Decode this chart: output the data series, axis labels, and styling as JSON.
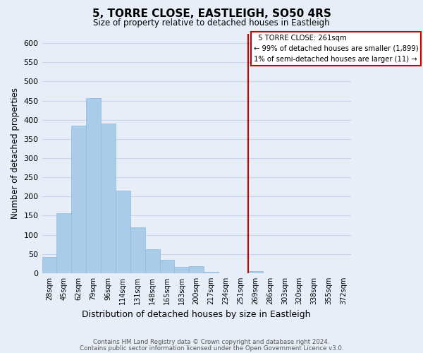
{
  "title": "5, TORRE CLOSE, EASTLEIGH, SO50 4RS",
  "subtitle": "Size of property relative to detached houses in Eastleigh",
  "xlabel": "Distribution of detached houses by size in Eastleigh",
  "ylabel": "Number of detached properties",
  "bar_labels": [
    "28sqm",
    "45sqm",
    "62sqm",
    "79sqm",
    "96sqm",
    "114sqm",
    "131sqm",
    "148sqm",
    "165sqm",
    "183sqm",
    "200sqm",
    "217sqm",
    "234sqm",
    "251sqm",
    "269sqm",
    "286sqm",
    "303sqm",
    "320sqm",
    "338sqm",
    "355sqm",
    "372sqm"
  ],
  "bar_values": [
    42,
    157,
    385,
    457,
    390,
    216,
    120,
    62,
    35,
    17,
    19,
    4,
    0,
    0,
    6,
    0,
    0,
    0,
    0,
    0,
    0
  ],
  "bar_color": "#aacce8",
  "bar_edge_color": "#88bbdd",
  "ylim": [
    0,
    625
  ],
  "yticks": [
    0,
    50,
    100,
    150,
    200,
    250,
    300,
    350,
    400,
    450,
    500,
    550,
    600
  ],
  "vline_color": "#cc0000",
  "annotation_title": "5 TORRE CLOSE: 261sqm",
  "annotation_line1": "← 99% of detached houses are smaller (1,899)",
  "annotation_line2": "1% of semi-detached houses are larger (11) →",
  "annotation_box_color": "#cc0000",
  "grid_color": "#c8d4e8",
  "background_color": "#e8eef8",
  "footnote1": "Contains HM Land Registry data © Crown copyright and database right 2024.",
  "footnote2": "Contains public sector information licensed under the Open Government Licence v3.0."
}
